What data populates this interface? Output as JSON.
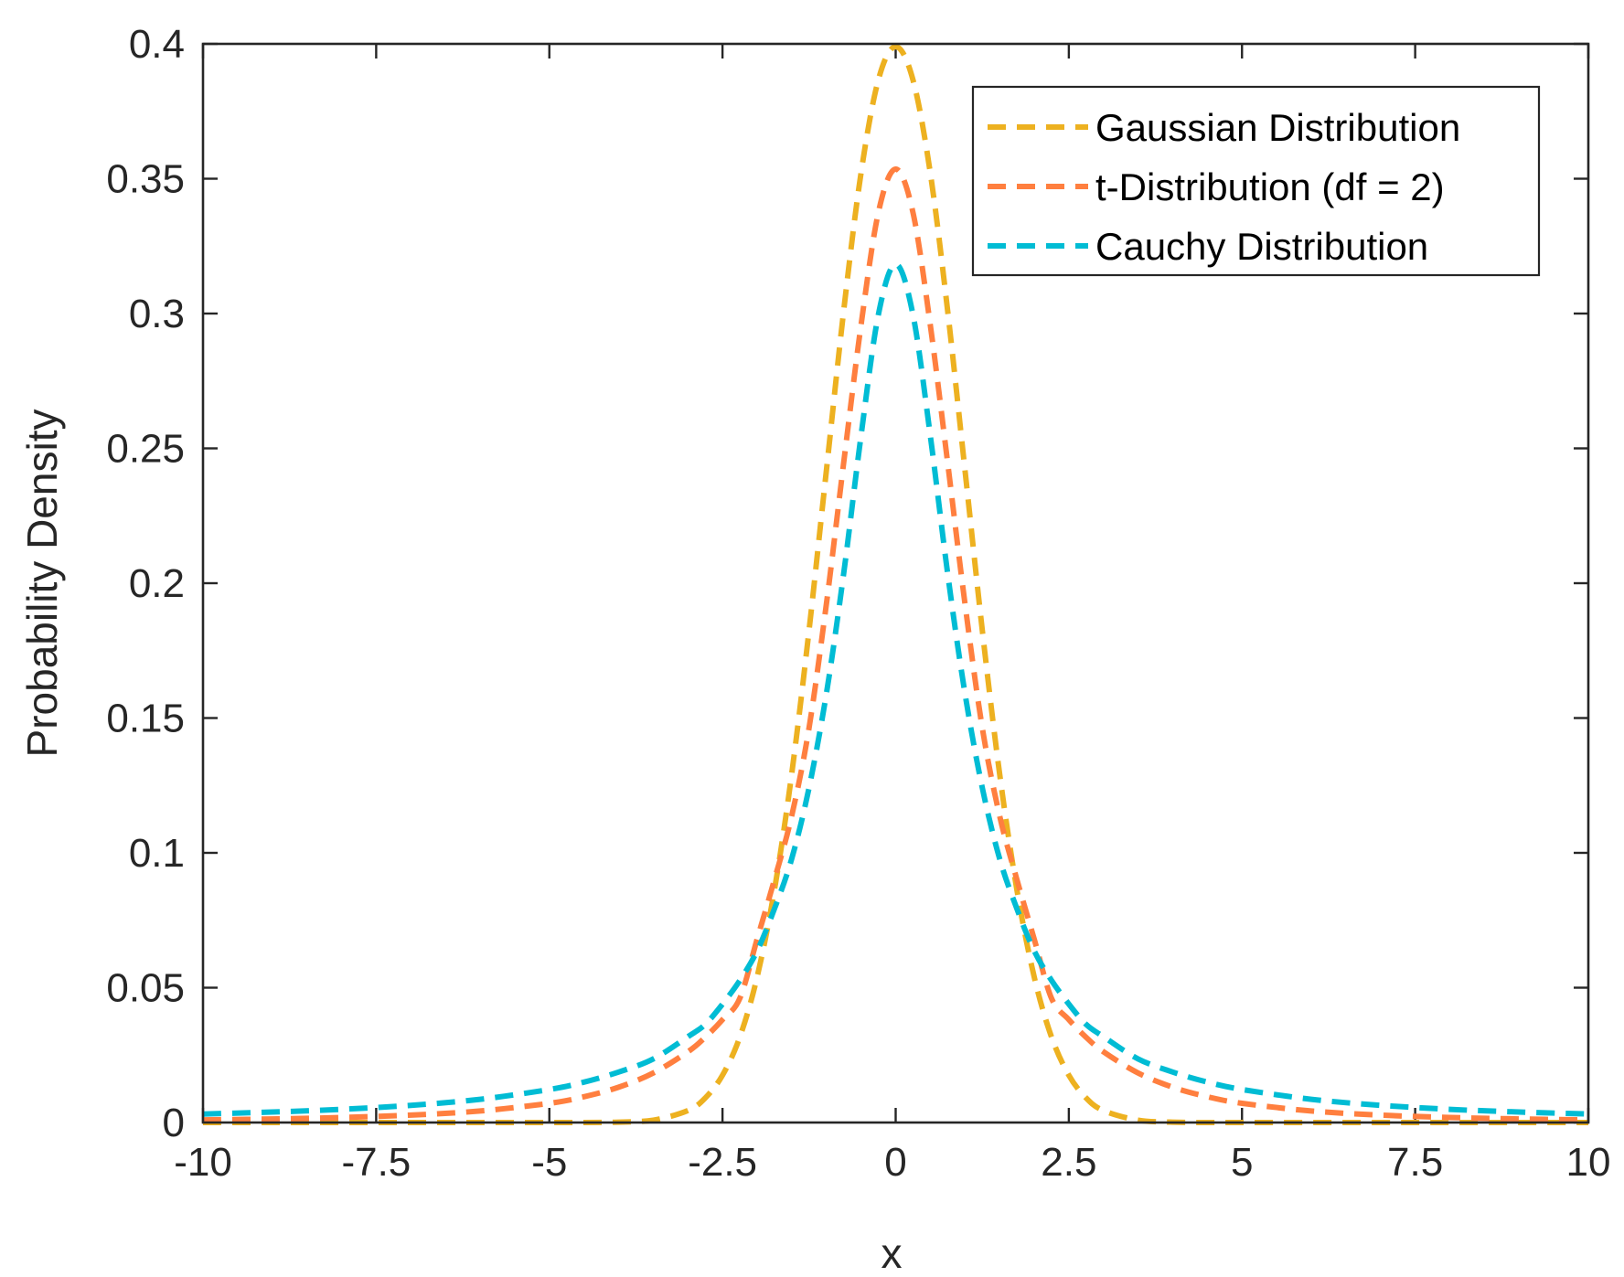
{
  "chart_data": {
    "type": "line",
    "xlabel": "x",
    "ylabel": "Probability Density",
    "xlim": [
      -10,
      10
    ],
    "ylim": [
      0,
      0.4
    ],
    "x_ticks": [
      -10,
      -7.5,
      -5,
      -2.5,
      0,
      2.5,
      5,
      7.5,
      10
    ],
    "x_tick_labels": [
      "-10",
      "-7.5",
      "-5",
      "-2.5",
      "0",
      "2.5",
      "5",
      "7.5",
      "10"
    ],
    "y_ticks": [
      0,
      0.05,
      0.1,
      0.15,
      0.2,
      0.25,
      0.3,
      0.35,
      0.4
    ],
    "y_tick_labels": [
      "0",
      "0.05",
      "0.1",
      "0.15",
      "0.2",
      "0.25",
      "0.3",
      "0.35",
      "0.4"
    ],
    "grid": false,
    "legend_position": "top-right",
    "line_style": "dashed",
    "x": [
      -10,
      -9,
      -8,
      -7,
      -6,
      -5,
      -4.5,
      -4,
      -3.5,
      -3,
      -2.75,
      -2.5,
      -2.25,
      -2,
      -1.75,
      -1.5,
      -1.25,
      -1,
      -0.75,
      -0.5,
      -0.25,
      0,
      0.25,
      0.5,
      0.75,
      1,
      1.25,
      1.5,
      1.75,
      2,
      2.25,
      2.5,
      2.75,
      3,
      3.5,
      4,
      4.5,
      5,
      6,
      7,
      8,
      9,
      10
    ],
    "series": [
      {
        "name": "Gaussian Distribution",
        "color": "#EDB120",
        "values": [
          0,
          0,
          0,
          0,
          0,
          1.5e-06,
          1.6e-05,
          0.000134,
          0.000873,
          0.004432,
          0.009094,
          0.017528,
          0.03174,
          0.053991,
          0.086277,
          0.129518,
          0.182649,
          0.241971,
          0.301137,
          0.352065,
          0.386668,
          0.398942,
          0.386668,
          0.352065,
          0.301137,
          0.241971,
          0.182649,
          0.129518,
          0.086277,
          0.053991,
          0.03174,
          0.017528,
          0.009094,
          0.004432,
          0.000873,
          0.000134,
          1.6e-05,
          1.5e-06,
          0,
          0,
          0,
          0,
          0
        ]
      },
      {
        "name": "t-Distribution (df = 2)",
        "color": "#FF7F3F",
        "values": [
          0.000971,
          0.001327,
          0.001876,
          0.00276,
          0.004273,
          0.007127,
          0.009555,
          0.013095,
          0.018356,
          0.026223,
          0.031588,
          0.038147,
          0.046065,
          0.068041,
          0.09007,
          0.113868,
          0.146395,
          0.19245,
          0.244802,
          0.295667,
          0.3375,
          0.353553,
          0.3375,
          0.295667,
          0.244802,
          0.19245,
          0.146395,
          0.113868,
          0.09007,
          0.068041,
          0.046065,
          0.038147,
          0.031588,
          0.026223,
          0.018356,
          0.013095,
          0.009555,
          0.007127,
          0.004273,
          0.00276,
          0.001876,
          0.001327,
          0.000971
        ]
      },
      {
        "name": "Cauchy Distribution",
        "color": "#00BCD4",
        "values": [
          0.003152,
          0.00389,
          0.004897,
          0.006366,
          0.008603,
          0.012243,
          0.014977,
          0.018724,
          0.023578,
          0.031831,
          0.036378,
          0.043905,
          0.052712,
          0.063662,
          0.079254,
          0.097942,
          0.124173,
          0.159155,
          0.203718,
          0.254648,
          0.299584,
          0.31831,
          0.299584,
          0.254648,
          0.203718,
          0.159155,
          0.124173,
          0.097942,
          0.079254,
          0.063662,
          0.052712,
          0.043905,
          0.036378,
          0.031831,
          0.023578,
          0.018724,
          0.014977,
          0.012243,
          0.008603,
          0.006366,
          0.004897,
          0.00389,
          0.003152
        ]
      }
    ]
  }
}
